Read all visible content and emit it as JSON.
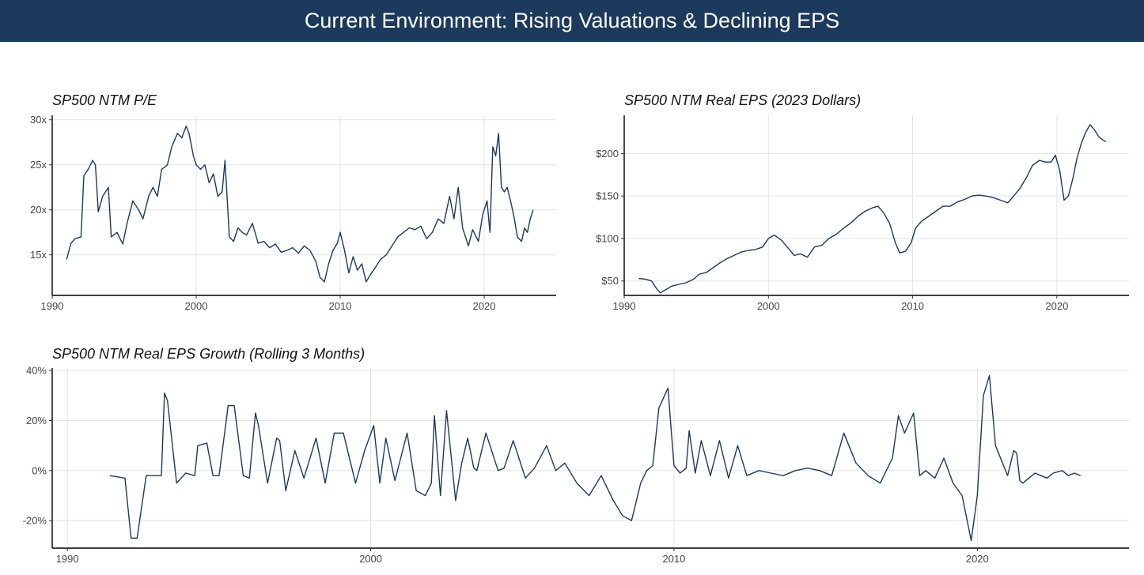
{
  "header": {
    "title": "Current Environment: Rising Valuations & Declining EPS"
  },
  "colors": {
    "banner": "#1b3a5c",
    "line": "#1b3a5c",
    "grid": "#e3e3e3"
  },
  "chart_data": [
    {
      "type": "line",
      "title": "SP500 NTM P/E",
      "xlim": [
        1990,
        2025
      ],
      "ylim": [
        10.5,
        30.5
      ],
      "x_ticks": [
        1990,
        2000,
        2010,
        2020
      ],
      "y_ticks": [
        15,
        20,
        25,
        30
      ],
      "y_tick_labels": [
        "15x",
        "20x",
        "25x",
        "30x"
      ],
      "series": [
        {
          "x": [
            1991.0,
            1991.3,
            1991.6,
            1992.0,
            1992.2,
            1992.5,
            1992.8,
            1993.0,
            1993.2,
            1993.5,
            1993.9,
            1994.1,
            1994.5,
            1994.9,
            1995.2,
            1995.6,
            1996.0,
            1996.3,
            1996.7,
            1997.0,
            1997.3,
            1997.6,
            1998.0,
            1998.3,
            1998.7,
            1999.0,
            1999.3,
            1999.5,
            1999.8,
            2000.0,
            2000.3,
            2000.6,
            2000.9,
            2001.2,
            2001.5,
            2001.8,
            2002.0,
            2002.3,
            2002.6,
            2002.9,
            2003.2,
            2003.5,
            2003.9,
            2004.3,
            2004.7,
            2005.1,
            2005.5,
            2005.9,
            2006.3,
            2006.7,
            2007.1,
            2007.5,
            2007.9,
            2008.3,
            2008.6,
            2008.9,
            2009.2,
            2009.5,
            2009.8,
            2010.0,
            2010.3,
            2010.6,
            2010.9,
            2011.2,
            2011.5,
            2011.8,
            2012.1,
            2012.4,
            2012.8,
            2013.2,
            2013.6,
            2014.0,
            2014.4,
            2014.8,
            2015.2,
            2015.6,
            2016.0,
            2016.4,
            2016.8,
            2017.2,
            2017.6,
            2017.9,
            2018.2,
            2018.5,
            2018.9,
            2019.2,
            2019.6,
            2019.9,
            2020.2,
            2020.4,
            2020.6,
            2020.8,
            2021.0,
            2021.2,
            2021.4,
            2021.6,
            2021.9,
            2022.1,
            2022.3,
            2022.6,
            2022.8,
            2023.0,
            2023.2,
            2023.4
          ],
          "y": [
            14.5,
            16.3,
            16.8,
            17.0,
            23.8,
            24.5,
            25.5,
            25.0,
            19.8,
            21.5,
            22.5,
            17.0,
            17.5,
            16.2,
            18.5,
            21.0,
            20.0,
            19.0,
            21.5,
            22.5,
            21.5,
            24.5,
            25.0,
            27.0,
            28.5,
            28.0,
            29.3,
            28.5,
            26.0,
            25.0,
            24.5,
            25.0,
            23.0,
            24.0,
            21.5,
            22.0,
            25.5,
            17.0,
            16.5,
            18.0,
            17.5,
            17.2,
            18.5,
            16.3,
            16.5,
            15.8,
            16.2,
            15.3,
            15.5,
            15.8,
            15.2,
            16.0,
            15.5,
            14.3,
            12.5,
            12.0,
            14.0,
            15.5,
            16.3,
            17.5,
            15.5,
            13.0,
            14.8,
            13.3,
            14.0,
            12.0,
            12.8,
            13.5,
            14.5,
            15.0,
            16.0,
            17.0,
            17.5,
            18.0,
            17.8,
            18.2,
            16.8,
            17.5,
            19.0,
            18.5,
            21.5,
            19.0,
            22.5,
            18.0,
            16.0,
            17.8,
            16.5,
            19.5,
            21.0,
            17.5,
            27.0,
            26.0,
            28.5,
            22.5,
            22.0,
            22.5,
            20.5,
            19.0,
            17.0,
            16.5,
            18.0,
            17.5,
            19.0,
            20.0
          ]
        }
      ]
    },
    {
      "type": "line",
      "title": "SP500 NTM Real EPS (2023 Dollars)",
      "xlim": [
        1990,
        2025
      ],
      "ylim": [
        33,
        245
      ],
      "x_ticks": [
        1990,
        2000,
        2010,
        2020
      ],
      "y_ticks": [
        50,
        100,
        150,
        200
      ],
      "y_tick_labels": [
        "$50",
        "$100",
        "$150",
        "$200"
      ],
      "series": [
        {
          "x": [
            1991.0,
            1991.5,
            1991.9,
            1992.2,
            1992.5,
            1992.9,
            1993.3,
            1993.8,
            1994.3,
            1994.8,
            1995.2,
            1995.7,
            1996.2,
            1996.7,
            1997.1,
            1997.6,
            1998.1,
            1998.6,
            1999.1,
            1999.6,
            2000.0,
            2000.4,
            2000.9,
            2001.3,
            2001.8,
            2002.2,
            2002.7,
            2003.2,
            2003.7,
            2004.2,
            2004.7,
            2005.2,
            2005.7,
            2006.2,
            2006.7,
            2007.2,
            2007.6,
            2008.0,
            2008.4,
            2008.8,
            2009.1,
            2009.5,
            2009.9,
            2010.2,
            2010.6,
            2011.1,
            2011.6,
            2012.1,
            2012.6,
            2013.1,
            2013.6,
            2014.1,
            2014.6,
            2015.1,
            2015.6,
            2016.1,
            2016.6,
            2017.0,
            2017.4,
            2017.9,
            2018.3,
            2018.8,
            2019.2,
            2019.6,
            2019.9,
            2020.2,
            2020.5,
            2020.8,
            2021.1,
            2021.4,
            2021.7,
            2022.0,
            2022.3,
            2022.6,
            2022.9,
            2023.2,
            2023.4
          ],
          "y": [
            53,
            52,
            50,
            42,
            36,
            40,
            44,
            46,
            48,
            52,
            58,
            60,
            66,
            72,
            76,
            80,
            84,
            86,
            87,
            90,
            100,
            104,
            98,
            90,
            80,
            82,
            78,
            90,
            92,
            100,
            105,
            112,
            118,
            126,
            132,
            136,
            138,
            130,
            118,
            95,
            83,
            85,
            95,
            112,
            120,
            126,
            132,
            138,
            138,
            143,
            146,
            150,
            151,
            150,
            148,
            145,
            142,
            150,
            158,
            172,
            186,
            192,
            190,
            190,
            198,
            180,
            145,
            150,
            170,
            195,
            212,
            225,
            234,
            228,
            220,
            216,
            214
          ]
        }
      ]
    },
    {
      "type": "line",
      "title": "SP500 NTM Real EPS Growth (Rolling 3 Months)",
      "xlim": [
        1989.5,
        2025.0
      ],
      "ylim": [
        -31,
        41
      ],
      "x_ticks": [
        1990,
        2000,
        2010,
        2020
      ],
      "y_ticks": [
        -20,
        0,
        20,
        40
      ],
      "y_tick_labels": [
        "-20%",
        "0%",
        "20%",
        "40%"
      ],
      "series": [
        {
          "x": [
            1991.4,
            1991.9,
            1992.0,
            1992.1,
            1992.3,
            1992.6,
            1993.0,
            1993.1,
            1993.2,
            1993.3,
            1993.6,
            1993.9,
            1994.2,
            1994.3,
            1994.6,
            1994.8,
            1995.0,
            1995.3,
            1995.5,
            1995.8,
            1996.0,
            1996.2,
            1996.3,
            1996.6,
            1996.9,
            1997.0,
            1997.2,
            1997.5,
            1997.8,
            1998.2,
            1998.5,
            1998.8,
            1999.1,
            1999.5,
            1999.8,
            2000.1,
            2000.3,
            2000.5,
            2000.8,
            2001.2,
            2001.5,
            2001.8,
            2002.0,
            2002.1,
            2002.3,
            2002.5,
            2002.8,
            2003.0,
            2003.2,
            2003.4,
            2003.5,
            2003.8,
            2004.2,
            2004.4,
            2004.7,
            2005.1,
            2005.4,
            2005.8,
            2006.1,
            2006.4,
            2006.8,
            2007.2,
            2007.6,
            2008.0,
            2008.3,
            2008.6,
            2008.9,
            2009.1,
            2009.3,
            2009.5,
            2009.8,
            2010.0,
            2010.2,
            2010.4,
            2010.5,
            2010.7,
            2010.9,
            2011.2,
            2011.5,
            2011.8,
            2012.1,
            2012.4,
            2012.8,
            2013.2,
            2013.6,
            2014.0,
            2014.4,
            2014.8,
            2015.2,
            2015.6,
            2016.0,
            2016.4,
            2016.8,
            2017.2,
            2017.4,
            2017.6,
            2017.9,
            2018.1,
            2018.3,
            2018.6,
            2018.9,
            2019.2,
            2019.5,
            2019.8,
            2020.0,
            2020.2,
            2020.4,
            2020.6,
            2020.8,
            2021.0,
            2021.2,
            2021.3,
            2021.4,
            2021.5,
            2021.7,
            2021.9,
            2022.1,
            2022.3,
            2022.5,
            2022.8,
            2023.0,
            2023.2,
            2023.4
          ],
          "y": [
            -2,
            -3,
            -15,
            -27,
            -27,
            -2,
            -2,
            -2,
            31,
            28,
            -5,
            -1,
            -2,
            10,
            11,
            -2,
            -2,
            26,
            26,
            -2,
            -3,
            23,
            18,
            -5,
            13,
            12,
            -8,
            8,
            -3,
            13,
            -5,
            15,
            15,
            -5,
            8,
            18,
            -5,
            13,
            -4,
            15,
            -8,
            -10,
            -5,
            22,
            -10,
            24,
            -12,
            3,
            13,
            1,
            0,
            15,
            0,
            1,
            12,
            -3,
            1,
            10,
            0,
            3,
            -5,
            -10,
            -2,
            -12,
            -18,
            -20,
            -5,
            0,
            2,
            25,
            33,
            2,
            -1,
            1,
            16,
            -1,
            12,
            -2,
            12,
            -3,
            10,
            -2,
            0,
            -1,
            -2,
            0,
            1,
            0,
            -2,
            15,
            3,
            -2,
            -5,
            5,
            22,
            15,
            23,
            -2,
            0,
            -3,
            5,
            -5,
            -10,
            -28,
            -10,
            30,
            38,
            10,
            4,
            -2,
            8,
            7,
            -4,
            -5,
            -3,
            -1,
            -2,
            -3,
            -1,
            0,
            -2,
            -1,
            -2
          ]
        }
      ]
    }
  ]
}
